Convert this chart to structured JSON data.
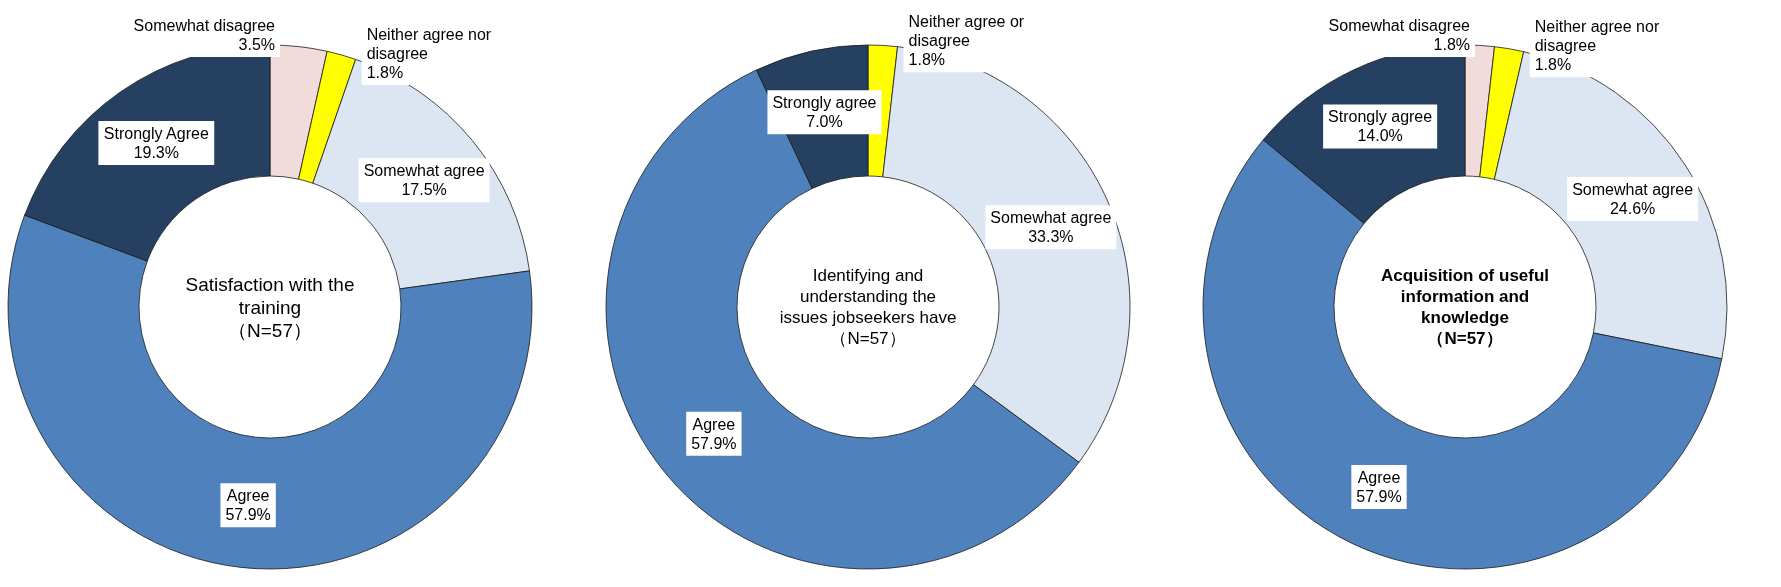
{
  "chart_data": [
    {
      "type": "donut",
      "title": "Satisfaction with the training",
      "subtitle": "（N=57）",
      "categories": [
        "Somewhat disagree",
        "Neither agree nor disagree",
        "Somewhat agree",
        "Agree",
        "Strongly Agree"
      ],
      "values": [
        3.5,
        1.8,
        17.5,
        57.9,
        19.3
      ],
      "colors": [
        "#f2dcdb",
        "#ffff00",
        "#dce6f2",
        "#4f81bd",
        "#254061"
      ],
      "value_labels": [
        "3.5%",
        "1.8%",
        "17.5%",
        "57.9%",
        "19.3%"
      ]
    },
    {
      "type": "donut",
      "title": "Identifying and understanding the issues jobseekers have",
      "subtitle": "（N=57）",
      "categories": [
        "Neither agree or disagree",
        "Somewhat agree",
        "Agree",
        "Strongly agree"
      ],
      "values": [
        1.8,
        33.3,
        57.9,
        7.0
      ],
      "colors": [
        "#ffff00",
        "#dce6f2",
        "#4f81bd",
        "#254061"
      ],
      "value_labels": [
        "1.8%",
        "33.3%",
        "57.9%",
        "7.0%"
      ]
    },
    {
      "type": "donut",
      "title": "Acquisition of useful information and knowledge",
      "subtitle": "（N=57）",
      "categories": [
        "Somewhat disagree",
        "Neither agree nor disagree",
        "Somewhat agree",
        "Agree",
        "Strongly agree"
      ],
      "values": [
        1.8,
        1.8,
        24.6,
        57.9,
        14.0
      ],
      "colors": [
        "#f2dcdb",
        "#ffff00",
        "#dce6f2",
        "#4f81bd",
        "#254061"
      ],
      "value_labels": [
        "1.8%",
        "1.8%",
        "24.6%",
        "57.9%",
        "14.0%"
      ]
    }
  ]
}
